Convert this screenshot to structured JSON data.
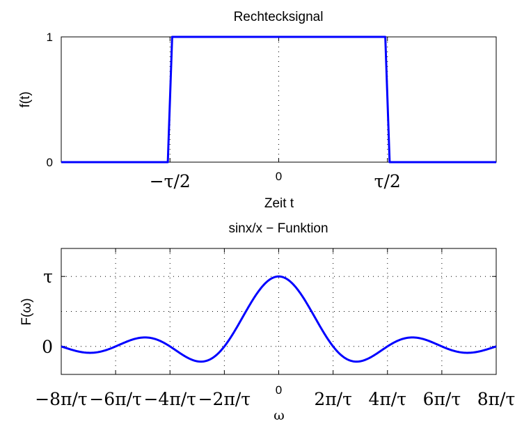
{
  "chart_data": [
    {
      "type": "line",
      "title": "Rechtecksignal",
      "xlabel": "Zeit t",
      "ylabel": "f(t)",
      "xlim": [
        -2,
        2
      ],
      "ylim": [
        0,
        1
      ],
      "x_unit": "tau",
      "xticks": [
        {
          "value": -1,
          "label": "−τ/2",
          "big": true
        },
        {
          "value": 0,
          "label": "0",
          "big": false
        },
        {
          "value": 1,
          "label": "τ/2",
          "big": true
        }
      ],
      "yticks": [
        {
          "value": 0,
          "label": "0"
        },
        {
          "value": 1,
          "label": "1"
        }
      ],
      "grid": true,
      "series": [
        {
          "x": [
            -2,
            -1.02,
            -0.98,
            0.98,
            1.02,
            2
          ],
          "y": [
            0,
            0,
            1,
            1,
            0,
            0
          ]
        }
      ],
      "color": "#0000ff"
    },
    {
      "type": "line",
      "title": "sinx/x − Funktion",
      "xlabel": "ω",
      "ylabel": "F(ω)",
      "x_unit": "pi/tau",
      "xlim": [
        -8,
        8
      ],
      "ylim": [
        -0.4,
        1.4
      ],
      "xticks": [
        {
          "value": -8,
          "label": "−8π/τ",
          "big": true
        },
        {
          "value": -6,
          "label": "−6π/τ",
          "big": true
        },
        {
          "value": -4,
          "label": "−4π/τ",
          "big": true
        },
        {
          "value": -2,
          "label": "−2π/τ",
          "big": true
        },
        {
          "value": 0,
          "label": "0",
          "big": false
        },
        {
          "value": 2,
          "label": "2π/τ",
          "big": true
        },
        {
          "value": 4,
          "label": "4π/τ",
          "big": true
        },
        {
          "value": 6,
          "label": "6π/τ",
          "big": true
        },
        {
          "value": 8,
          "label": "8π/τ",
          "big": true
        }
      ],
      "yticks": [
        {
          "value": 0,
          "label": "0"
        },
        {
          "value": 1,
          "label": "τ"
        }
      ],
      "grid": true,
      "function": "sin(x)/x, x = omega*tau/2",
      "color": "#0000ff"
    }
  ]
}
